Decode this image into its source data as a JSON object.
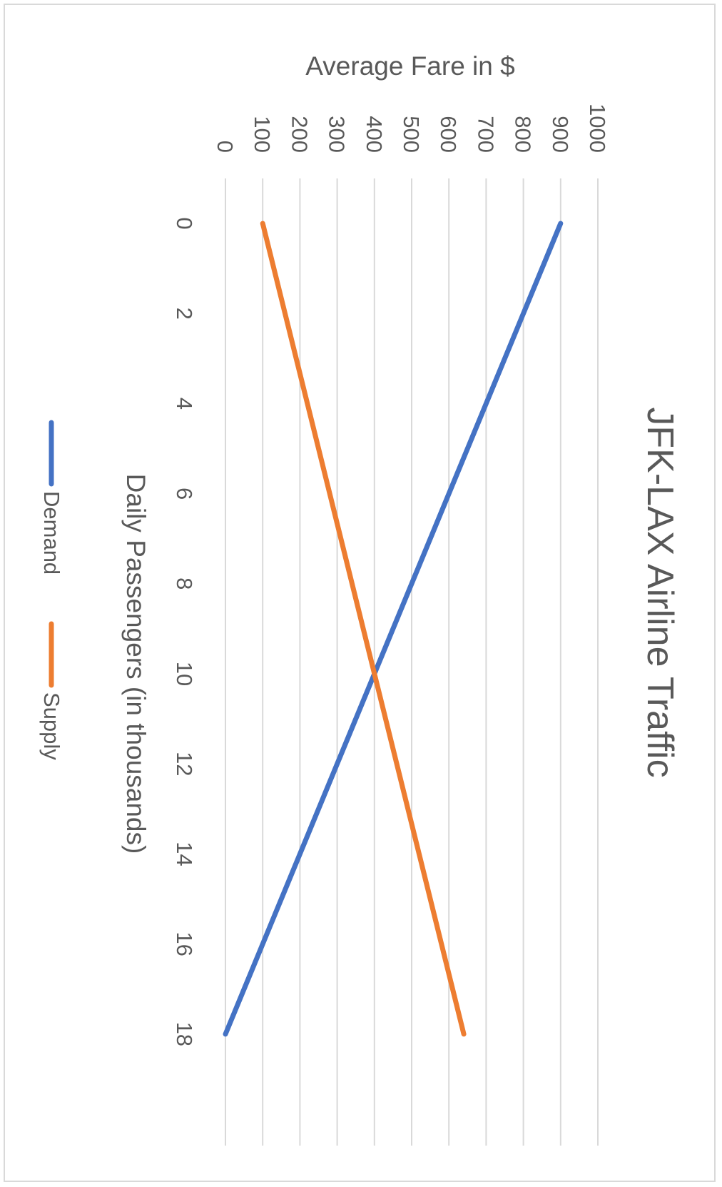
{
  "chart_data": {
    "type": "line",
    "title": "JFK-LAX Airline Traffic",
    "xlabel": "Daily Passengers (in thousands)",
    "ylabel": "Average Fare in $",
    "x_ticks": [
      "0",
      "2",
      "4",
      "6",
      "8",
      "10",
      "12",
      "14",
      "16",
      "18"
    ],
    "y_ticks": [
      "0",
      "100",
      "200",
      "300",
      "400",
      "500",
      "600",
      "700",
      "800",
      "900",
      "1000"
    ],
    "xlim": [
      0,
      20
    ],
    "ylim": [
      0,
      1000
    ],
    "grid": true,
    "legend_position": "bottom",
    "orientation": "rotated 90 degrees clockwise",
    "series": [
      {
        "name": "Demand",
        "color": "#4472C4",
        "x": [
          0,
          18
        ],
        "y": [
          900,
          0
        ]
      },
      {
        "name": "Supply",
        "color": "#ED7D31",
        "x": [
          0,
          18
        ],
        "y": [
          100,
          640
        ]
      }
    ]
  }
}
